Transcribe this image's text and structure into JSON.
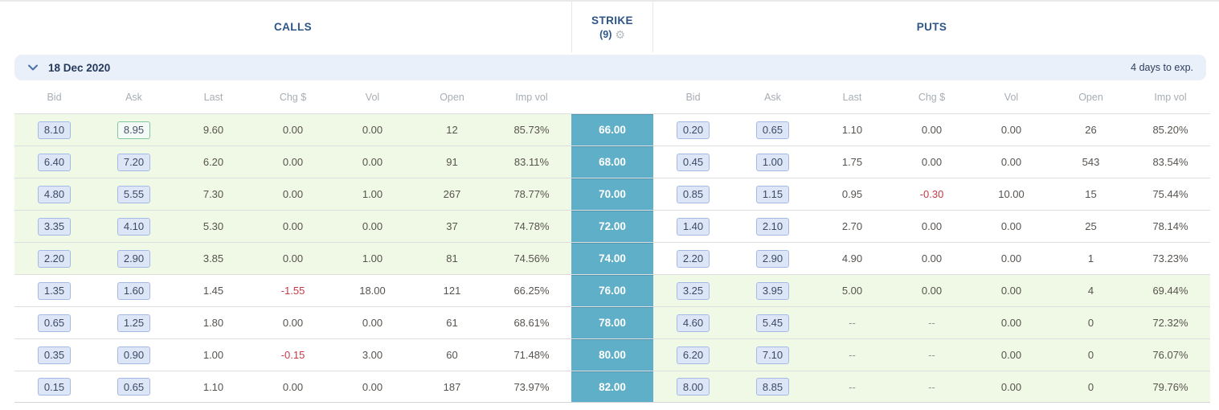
{
  "titles": {
    "calls": "CALLS",
    "strike": "STRIKE",
    "strike_count": "(9)",
    "puts": "PUTS"
  },
  "expiry": {
    "label": "18 Dec 2020",
    "days_to_exp": "4 days to exp."
  },
  "columns": [
    "Bid",
    "Ask",
    "Last",
    "Chg $",
    "Vol",
    "Open",
    "Imp vol"
  ],
  "colors": {
    "header_text": "#2d5588",
    "strike_bg": "#60afc9",
    "itm_row_bg": "#f0f8e6",
    "expiry_bar_bg": "#e9f0fa",
    "quote_box_bg": "#dde6f7",
    "quote_box_border": "#a5b9e6",
    "flash_box_border": "#80c89e",
    "negative": "#c43a48"
  },
  "rows": [
    {
      "strike": "66.00",
      "call": {
        "bid": "8.10",
        "ask": "8.95",
        "ask_flash": true,
        "last": "9.60",
        "chg": "0.00",
        "vol": "0.00",
        "open": "12",
        "imp_vol": "85.73%",
        "itm": true
      },
      "put": {
        "bid": "0.20",
        "ask": "0.65",
        "last": "1.10",
        "chg": "0.00",
        "vol": "0.00",
        "open": "26",
        "imp_vol": "85.20%",
        "itm": false
      }
    },
    {
      "strike": "68.00",
      "call": {
        "bid": "6.40",
        "ask": "7.20",
        "last": "6.20",
        "chg": "0.00",
        "vol": "0.00",
        "open": "91",
        "imp_vol": "83.11%",
        "itm": true
      },
      "put": {
        "bid": "0.45",
        "ask": "1.00",
        "last": "1.75",
        "chg": "0.00",
        "vol": "0.00",
        "open": "543",
        "imp_vol": "83.54%",
        "itm": false
      }
    },
    {
      "strike": "70.00",
      "call": {
        "bid": "4.80",
        "ask": "5.55",
        "last": "7.30",
        "chg": "0.00",
        "vol": "1.00",
        "open": "267",
        "imp_vol": "78.77%",
        "itm": true
      },
      "put": {
        "bid": "0.85",
        "ask": "1.15",
        "last": "0.95",
        "chg": "-0.30",
        "vol": "10.00",
        "open": "15",
        "imp_vol": "75.44%",
        "itm": false
      }
    },
    {
      "strike": "72.00",
      "call": {
        "bid": "3.35",
        "ask": "4.10",
        "last": "5.30",
        "chg": "0.00",
        "vol": "0.00",
        "open": "37",
        "imp_vol": "74.78%",
        "itm": true
      },
      "put": {
        "bid": "1.40",
        "ask": "2.10",
        "last": "2.70",
        "chg": "0.00",
        "vol": "0.00",
        "open": "25",
        "imp_vol": "78.14%",
        "itm": false
      }
    },
    {
      "strike": "74.00",
      "call": {
        "bid": "2.20",
        "ask": "2.90",
        "last": "3.85",
        "chg": "0.00",
        "vol": "1.00",
        "open": "81",
        "imp_vol": "74.56%",
        "itm": true
      },
      "put": {
        "bid": "2.20",
        "ask": "2.90",
        "last": "4.90",
        "chg": "0.00",
        "vol": "0.00",
        "open": "1",
        "imp_vol": "73.23%",
        "itm": false
      }
    },
    {
      "strike": "76.00",
      "call": {
        "bid": "1.35",
        "ask": "1.60",
        "last": "1.45",
        "chg": "-1.55",
        "vol": "18.00",
        "open": "121",
        "imp_vol": "66.25%",
        "itm": false
      },
      "put": {
        "bid": "3.25",
        "ask": "3.95",
        "last": "5.00",
        "chg": "0.00",
        "vol": "0.00",
        "open": "4",
        "imp_vol": "69.44%",
        "itm": true
      }
    },
    {
      "strike": "78.00",
      "call": {
        "bid": "0.65",
        "ask": "1.25",
        "last": "1.80",
        "chg": "0.00",
        "vol": "0.00",
        "open": "61",
        "imp_vol": "68.61%",
        "itm": false
      },
      "put": {
        "bid": "4.60",
        "ask": "5.45",
        "last": "--",
        "chg": "--",
        "vol": "0.00",
        "open": "0",
        "imp_vol": "72.32%",
        "itm": true
      }
    },
    {
      "strike": "80.00",
      "call": {
        "bid": "0.35",
        "ask": "0.90",
        "last": "1.00",
        "chg": "-0.15",
        "vol": "3.00",
        "open": "60",
        "imp_vol": "71.48%",
        "itm": false
      },
      "put": {
        "bid": "6.20",
        "ask": "7.10",
        "last": "--",
        "chg": "--",
        "vol": "0.00",
        "open": "0",
        "imp_vol": "76.07%",
        "itm": true
      }
    },
    {
      "strike": "82.00",
      "call": {
        "bid": "0.15",
        "ask": "0.65",
        "last": "1.10",
        "chg": "0.00",
        "vol": "0.00",
        "open": "187",
        "imp_vol": "73.97%",
        "itm": false
      },
      "put": {
        "bid": "8.00",
        "ask": "8.85",
        "last": "--",
        "chg": "--",
        "vol": "0.00",
        "open": "0",
        "imp_vol": "79.76%",
        "itm": true
      }
    }
  ]
}
